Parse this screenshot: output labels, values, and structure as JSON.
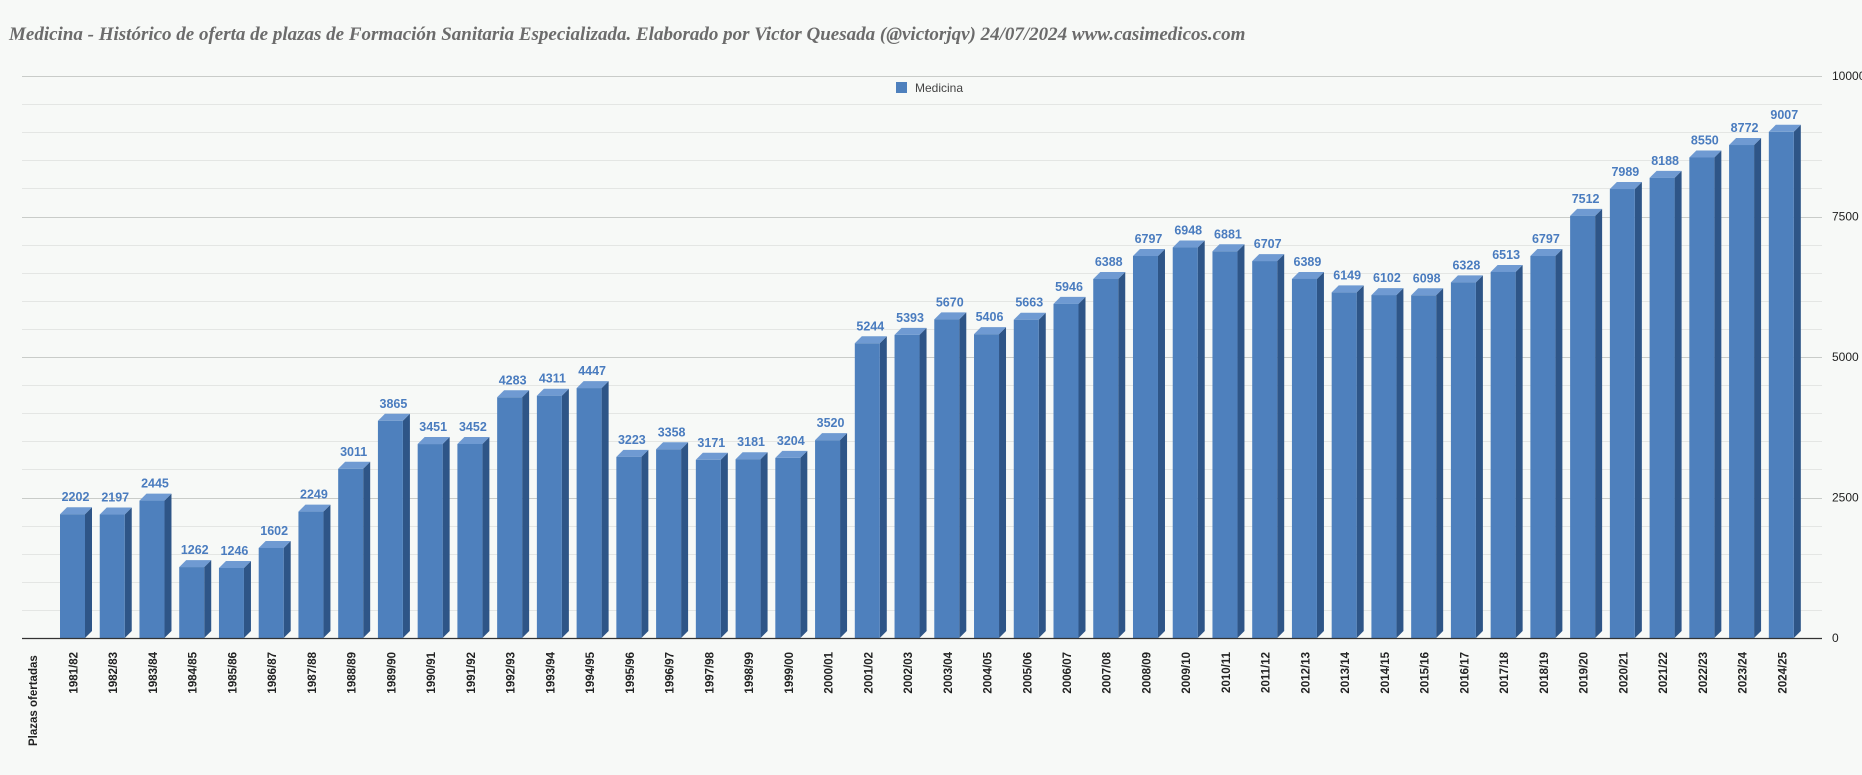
{
  "chart_data": {
    "type": "bar",
    "title": "Medicina - Histórico de oferta de plazas de Formación Sanitaria Especializada. Elaborado por Victor Quesada (@victorjqv)  24/07/2024 www.casimedicos.com",
    "xlabel": "Plazas ofertadas",
    "ylabel": "",
    "ylim": [
      0,
      10000
    ],
    "yticks": [
      0,
      2500,
      5000,
      7500,
      10000
    ],
    "legend": "top-center",
    "grid": true,
    "categories": [
      "1981/82",
      "1982/83",
      "1983/84",
      "1984/85",
      "1985/86",
      "1986/87",
      "1987/88",
      "1988/89",
      "1989/90",
      "1990/91",
      "1991/92",
      "1992/93",
      "1993/94",
      "1994/95",
      "1995/96",
      "1996/97",
      "1997/98",
      "1998/99",
      "1999/00",
      "2000/01",
      "2001/02",
      "2002/03",
      "2003/04",
      "2004/05",
      "2005/06",
      "2006/07",
      "2007/08",
      "2008/09",
      "2009/10",
      "2010/11",
      "2011/12",
      "2012/13",
      "2013/14",
      "2014/15",
      "2015/16",
      "2016/17",
      "2017/18",
      "2018/19",
      "2019/20",
      "2020/21",
      "2021/22",
      "2022/23",
      "2023/24",
      "2024/25"
    ],
    "series": [
      {
        "name": "Medicina",
        "color": "#4e80bd",
        "values": [
          2202,
          2197,
          2445,
          1262,
          1246,
          1602,
          2249,
          3011,
          3865,
          3451,
          3452,
          4283,
          4311,
          4447,
          3223,
          3358,
          3171,
          3181,
          3204,
          3520,
          5244,
          5393,
          5670,
          5406,
          5663,
          5946,
          6388,
          6797,
          6948,
          6881,
          6707,
          6389,
          6149,
          6102,
          6098,
          6328,
          6513,
          6797,
          7512,
          7989,
          8188,
          8550,
          8772,
          9007
        ]
      }
    ]
  }
}
